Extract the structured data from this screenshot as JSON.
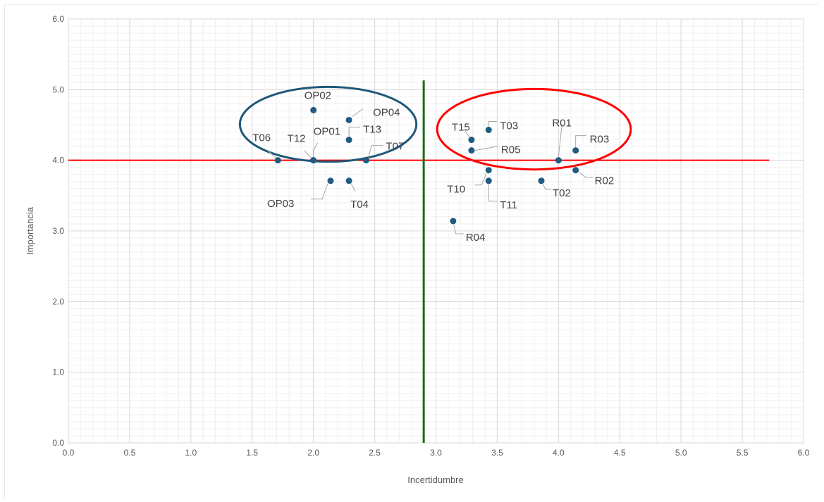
{
  "chart_data": {
    "type": "scatter",
    "xlabel": "Incertidumbre",
    "ylabel": "Importancia",
    "xlim": [
      0,
      6
    ],
    "ylim": [
      0,
      6
    ],
    "x_ticks": [
      "0.0",
      "0.5",
      "1.0",
      "1.5",
      "2.0",
      "2.5",
      "3.0",
      "3.5",
      "4.0",
      "4.5",
      "5.0",
      "5.5",
      "6.0"
    ],
    "y_ticks": [
      "0.0",
      "1.0",
      "2.0",
      "3.0",
      "4.0",
      "5.0",
      "6.0"
    ],
    "grid": true,
    "minor_grid": true,
    "points": [
      {
        "label": "OP02",
        "x": 2.0,
        "y": 4.71
      },
      {
        "label": "OP04",
        "x": 2.29,
        "y": 4.57
      },
      {
        "label": "T13",
        "x": 2.29,
        "y": 4.29
      },
      {
        "label": "OP01",
        "x": 2.0,
        "y": 4.0
      },
      {
        "label": "T12",
        "x": 2.0,
        "y": 4.0
      },
      {
        "label": "T06",
        "x": 1.71,
        "y": 4.0
      },
      {
        "label": "T07",
        "x": 2.43,
        "y": 4.0
      },
      {
        "label": "OP03",
        "x": 2.14,
        "y": 3.71
      },
      {
        "label": "T04",
        "x": 2.29,
        "y": 3.71
      },
      {
        "label": "T15",
        "x": 3.29,
        "y": 4.29
      },
      {
        "label": "T03",
        "x": 3.43,
        "y": 4.43
      },
      {
        "label": "R05",
        "x": 3.29,
        "y": 4.14
      },
      {
        "label": "R01",
        "x": 4.0,
        "y": 4.0
      },
      {
        "label": "R03",
        "x": 4.14,
        "y": 4.14
      },
      {
        "label": "R02",
        "x": 4.14,
        "y": 3.86
      },
      {
        "label": "T10",
        "x": 3.43,
        "y": 3.86
      },
      {
        "label": "T11",
        "x": 3.43,
        "y": 3.71
      },
      {
        "label": "T02",
        "x": 3.86,
        "y": 3.71
      },
      {
        "label": "R04",
        "x": 3.14,
        "y": 3.14
      }
    ],
    "reference_lines": [
      {
        "orientation": "horizontal",
        "y": 4.0,
        "x_range": [
          0,
          5.72
        ],
        "color": "#ff0000"
      },
      {
        "orientation": "vertical",
        "x": 2.9,
        "y_range": [
          0,
          5.13
        ],
        "color": "#1a6b1a"
      }
    ],
    "ellipses": [
      {
        "center": [
          2.12,
          4.51
        ],
        "radius": [
          0.72,
          0.53
        ],
        "color": "#20587a"
      },
      {
        "center": [
          3.8,
          4.44
        ],
        "radius": [
          0.79,
          0.57
        ],
        "color": "#ff0000"
      }
    ],
    "colors": {
      "marker": "#1f5c82",
      "grid_major": "#d9d9d9",
      "grid_minor": "#f0f0f0",
      "leader_line": "#a6a6a6"
    }
  }
}
